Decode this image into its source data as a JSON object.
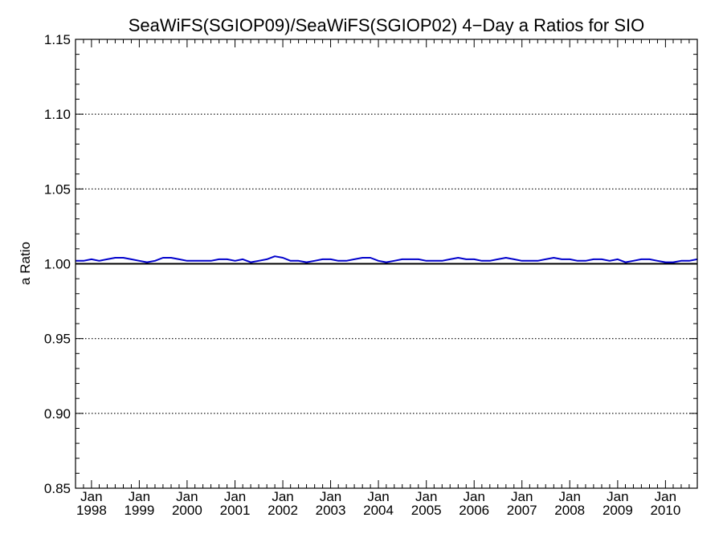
{
  "chart_data": {
    "type": "line",
    "title": "SeaWiFS(SGIOP09)/SeaWiFS(SGIOP02) 4−Day a Ratios for SIO",
    "xlabel": "",
    "ylabel": "a Ratio",
    "ylim": [
      0.85,
      1.15
    ],
    "y_ticks": [
      "0.85",
      "0.90",
      "0.95",
      "1.00",
      "1.05",
      "1.10",
      "1.15"
    ],
    "y_tick_values": [
      0.85,
      0.9,
      0.95,
      1.0,
      1.05,
      1.1,
      1.15
    ],
    "y_dotted_grid_values": [
      0.9,
      0.95,
      1.05,
      1.1
    ],
    "reference_line": 1.0,
    "xlim": [
      "1997-09-01",
      "2010-09-01"
    ],
    "x_ticks": [
      {
        "month": "Jan",
        "year": "1998",
        "date": "1998-01-01"
      },
      {
        "month": "Jan",
        "year": "1999",
        "date": "1999-01-01"
      },
      {
        "month": "Jan",
        "year": "2000",
        "date": "2000-01-01"
      },
      {
        "month": "Jan",
        "year": "2001",
        "date": "2001-01-01"
      },
      {
        "month": "Jan",
        "year": "2002",
        "date": "2002-01-01"
      },
      {
        "month": "Jan",
        "year": "2003",
        "date": "2003-01-01"
      },
      {
        "month": "Jan",
        "year": "2004",
        "date": "2004-01-01"
      },
      {
        "month": "Jan",
        "year": "2005",
        "date": "2005-01-01"
      },
      {
        "month": "Jan",
        "year": "2006",
        "date": "2006-01-01"
      },
      {
        "month": "Jan",
        "year": "2007",
        "date": "2007-01-01"
      },
      {
        "month": "Jan",
        "year": "2008",
        "date": "2008-01-01"
      },
      {
        "month": "Jan",
        "year": "2009",
        "date": "2009-01-01"
      },
      {
        "month": "Jan",
        "year": "2010",
        "date": "2010-01-01"
      }
    ],
    "series": [
      {
        "color": "#0000cc",
        "x": [
          "1997-09-01",
          "1997-11-01",
          "1998-01-01",
          "1998-03-01",
          "1998-05-01",
          "1998-07-01",
          "1998-09-01",
          "1998-11-01",
          "1999-01-01",
          "1999-03-01",
          "1999-05-01",
          "1999-07-01",
          "1999-09-01",
          "1999-11-01",
          "2000-01-01",
          "2000-03-01",
          "2000-05-01",
          "2000-07-01",
          "2000-09-01",
          "2000-11-01",
          "2001-01-01",
          "2001-03-01",
          "2001-05-01",
          "2001-07-01",
          "2001-09-01",
          "2001-11-01",
          "2002-01-01",
          "2002-03-01",
          "2002-05-01",
          "2002-07-01",
          "2002-09-01",
          "2002-11-01",
          "2003-01-01",
          "2003-03-01",
          "2003-05-01",
          "2003-07-01",
          "2003-09-01",
          "2003-11-01",
          "2004-01-01",
          "2004-03-01",
          "2004-05-01",
          "2004-07-01",
          "2004-09-01",
          "2004-11-01",
          "2005-01-01",
          "2005-03-01",
          "2005-05-01",
          "2005-07-01",
          "2005-09-01",
          "2005-11-01",
          "2006-01-01",
          "2006-03-01",
          "2006-05-01",
          "2006-07-01",
          "2006-09-01",
          "2006-11-01",
          "2007-01-01",
          "2007-03-01",
          "2007-05-01",
          "2007-07-01",
          "2007-09-01",
          "2007-11-01",
          "2008-01-01",
          "2008-03-01",
          "2008-05-01",
          "2008-07-01",
          "2008-09-01",
          "2008-11-01",
          "2009-01-01",
          "2009-03-01",
          "2009-05-01",
          "2009-07-01",
          "2009-09-01",
          "2009-11-01",
          "2010-01-01",
          "2010-03-01",
          "2010-05-01",
          "2010-07-01",
          "2010-09-01"
        ],
        "y": [
          1.002,
          1.002,
          1.003,
          1.002,
          1.003,
          1.004,
          1.004,
          1.003,
          1.002,
          1.001,
          1.002,
          1.004,
          1.004,
          1.003,
          1.002,
          1.002,
          1.002,
          1.002,
          1.003,
          1.003,
          1.002,
          1.003,
          1.001,
          1.002,
          1.003,
          1.005,
          1.004,
          1.002,
          1.002,
          1.001,
          1.002,
          1.003,
          1.003,
          1.002,
          1.002,
          1.003,
          1.004,
          1.004,
          1.002,
          1.001,
          1.002,
          1.003,
          1.003,
          1.003,
          1.002,
          1.002,
          1.002,
          1.003,
          1.004,
          1.003,
          1.003,
          1.002,
          1.002,
          1.003,
          1.004,
          1.003,
          1.002,
          1.002,
          1.002,
          1.003,
          1.004,
          1.003,
          1.003,
          1.002,
          1.002,
          1.003,
          1.003,
          1.002,
          1.003,
          1.001,
          1.002,
          1.003,
          1.003,
          1.002,
          1.001,
          1.001,
          1.002,
          1.002,
          1.003
        ]
      }
    ]
  }
}
